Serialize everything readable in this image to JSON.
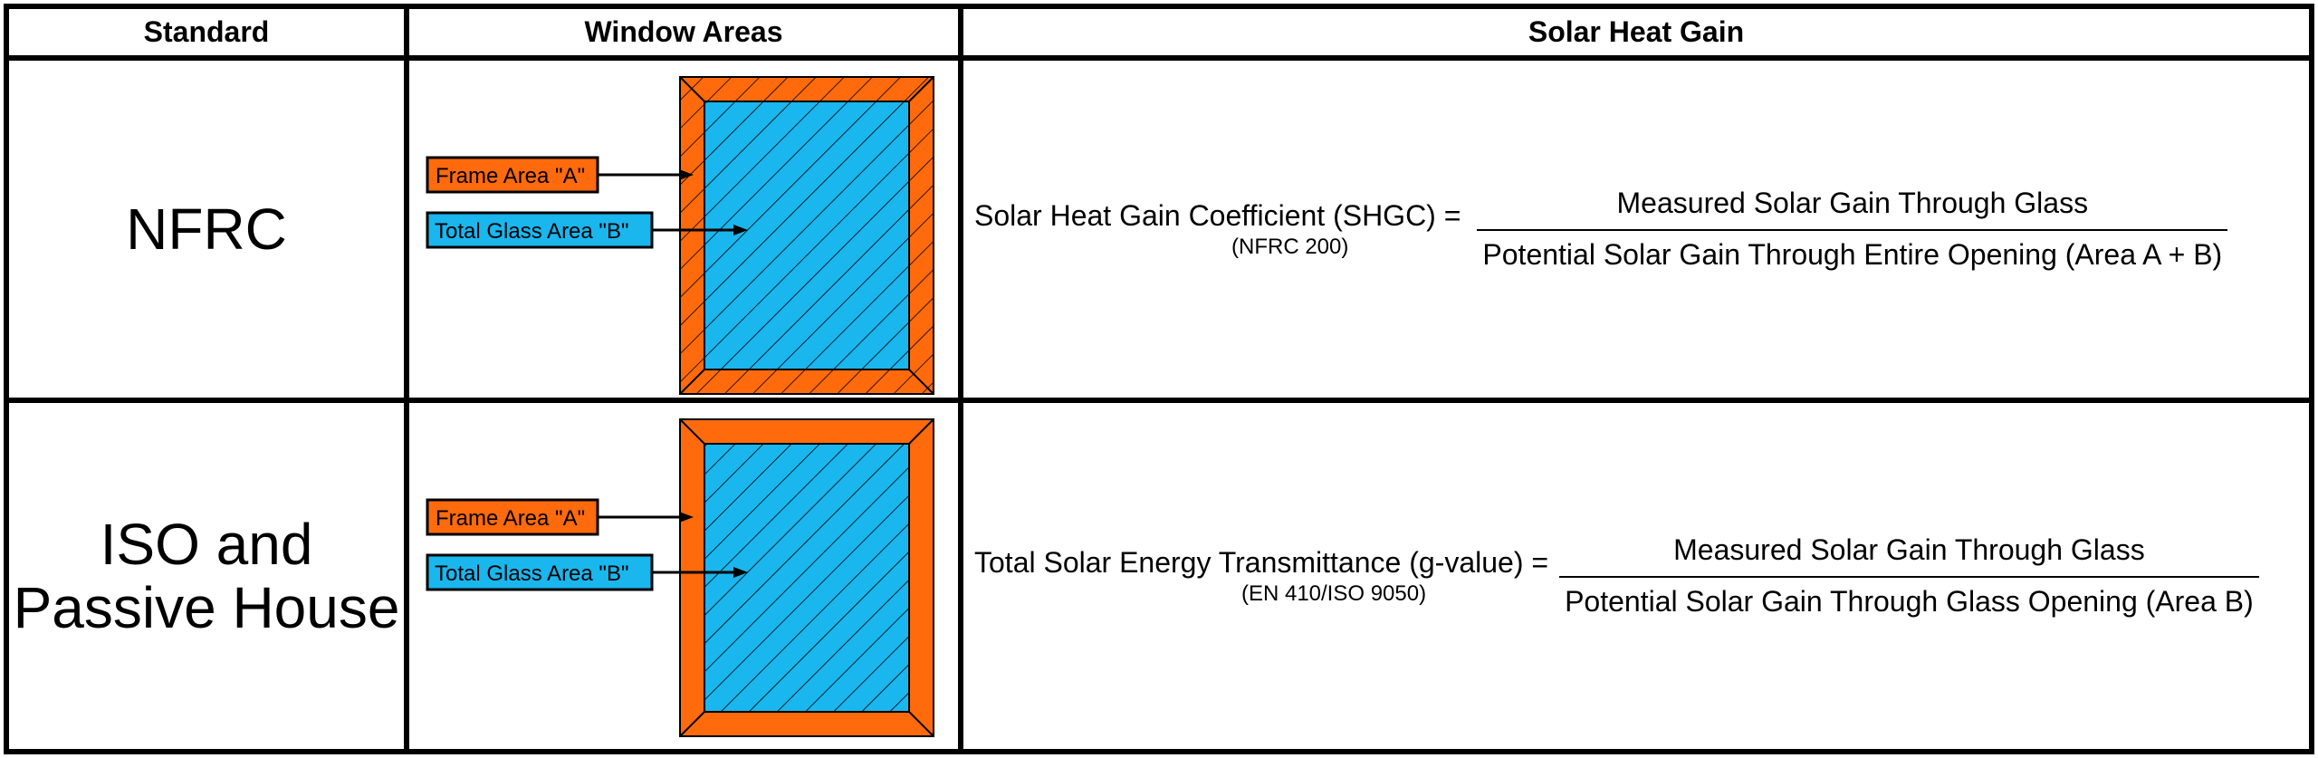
{
  "columns": {
    "standard": "Standard",
    "window_areas": "Window Areas",
    "solar_heat_gain": "Solar Heat Gain"
  },
  "colors": {
    "frame": "#ff6a0d",
    "glass": "#1ab6ee",
    "outline": "#000000"
  },
  "rows": [
    {
      "standard_lines": [
        "NFRC"
      ],
      "frame_label": "Frame Area \"A\"",
      "glass_label": "Total Glass Area \"B\"",
      "frame_hatched": true,
      "formula_name": "Solar Heat Gain Coefficient (SHGC) =",
      "formula_ref": "(NFRC 200)",
      "numerator": "Measured Solar Gain Through Glass",
      "denominator": "Potential Solar Gain Through Entire Opening (Area A + B)"
    },
    {
      "standard_lines": [
        "ISO and",
        "Passive House"
      ],
      "frame_label": "Frame Area \"A\"",
      "glass_label": "Total Glass Area \"B\"",
      "frame_hatched": false,
      "formula_name": "Total Solar Energy Transmittance (g-value) =",
      "formula_ref": "(EN 410/ISO 9050)",
      "numerator": "Measured Solar Gain Through Glass",
      "denominator": "Potential Solar Gain Through Glass Opening (Area B)"
    }
  ]
}
